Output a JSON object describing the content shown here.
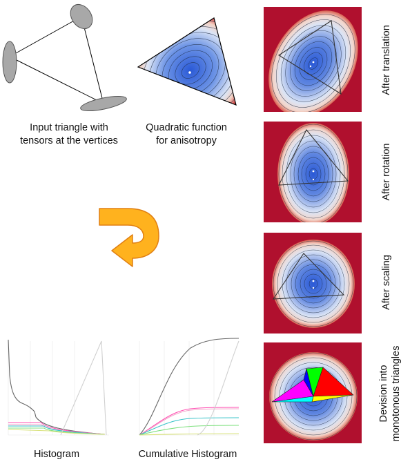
{
  "captions": {
    "input_triangle": "Input triangle with\ntensors at the vertices",
    "quadratic": "Quadratic function\nfor anisotropy",
    "histogram": "Histogram",
    "cumulative": "Cumulative Histogram"
  },
  "stages": [
    {
      "label": "After translation"
    },
    {
      "label": "After rotation"
    },
    {
      "label": "After scaling"
    },
    {
      "label": "Devision into\nmonotonous triangles"
    }
  ],
  "colors": {
    "background_red": "#b0102e",
    "field_center": "#2a59d6",
    "field_edge": "#f3efe9",
    "arrow_fill": "#ffb21e",
    "arrow_stroke": "#e07f12",
    "tensor_gray": "#a8a8a8"
  },
  "monotone_colors": [
    "#ff00ff",
    "#0000ff",
    "#00ff00",
    "#ff0000",
    "#ffff00",
    "#00ffff"
  ]
}
